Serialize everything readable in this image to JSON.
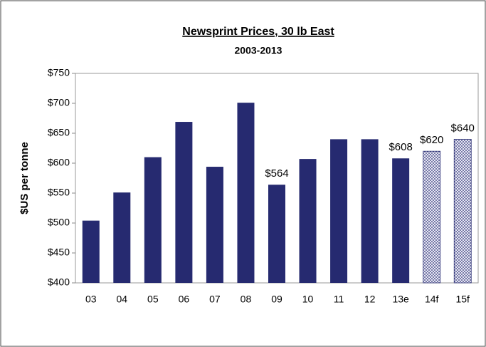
{
  "chart_data": {
    "type": "bar",
    "title": "Newsprint Prices, 30 lb East",
    "subtitle": "2003-2013",
    "y_label": "$US per tonne",
    "categories": [
      "03",
      "04",
      "05",
      "06",
      "07",
      "08",
      "09",
      "10",
      "11",
      "12",
      "13e",
      "14f",
      "15f"
    ],
    "values": [
      504,
      551,
      610,
      669,
      594,
      701,
      564,
      607,
      640,
      640,
      608,
      620,
      640
    ],
    "value_labels": [
      null,
      null,
      null,
      null,
      null,
      null,
      "$564",
      null,
      null,
      null,
      "$608",
      "$620",
      "$640"
    ],
    "color": "#262a70",
    "bar_styles": [
      "solid",
      "solid",
      "solid",
      "solid",
      "solid",
      "solid",
      "solid",
      "solid",
      "solid",
      "solid",
      "solid",
      "dotted",
      "dotted"
    ],
    "ylim": [
      400,
      750
    ],
    "yticks": [
      {
        "value": 400,
        "label": "$400"
      },
      {
        "value": 450,
        "label": "$450"
      },
      {
        "value": 500,
        "label": "$500"
      },
      {
        "value": 550,
        "label": "$550"
      },
      {
        "value": 600,
        "label": "$600"
      },
      {
        "value": 650,
        "label": "$650"
      },
      {
        "value": 700,
        "label": "$700"
      },
      {
        "value": 750,
        "label": "$750"
      }
    ],
    "grid": false
  }
}
